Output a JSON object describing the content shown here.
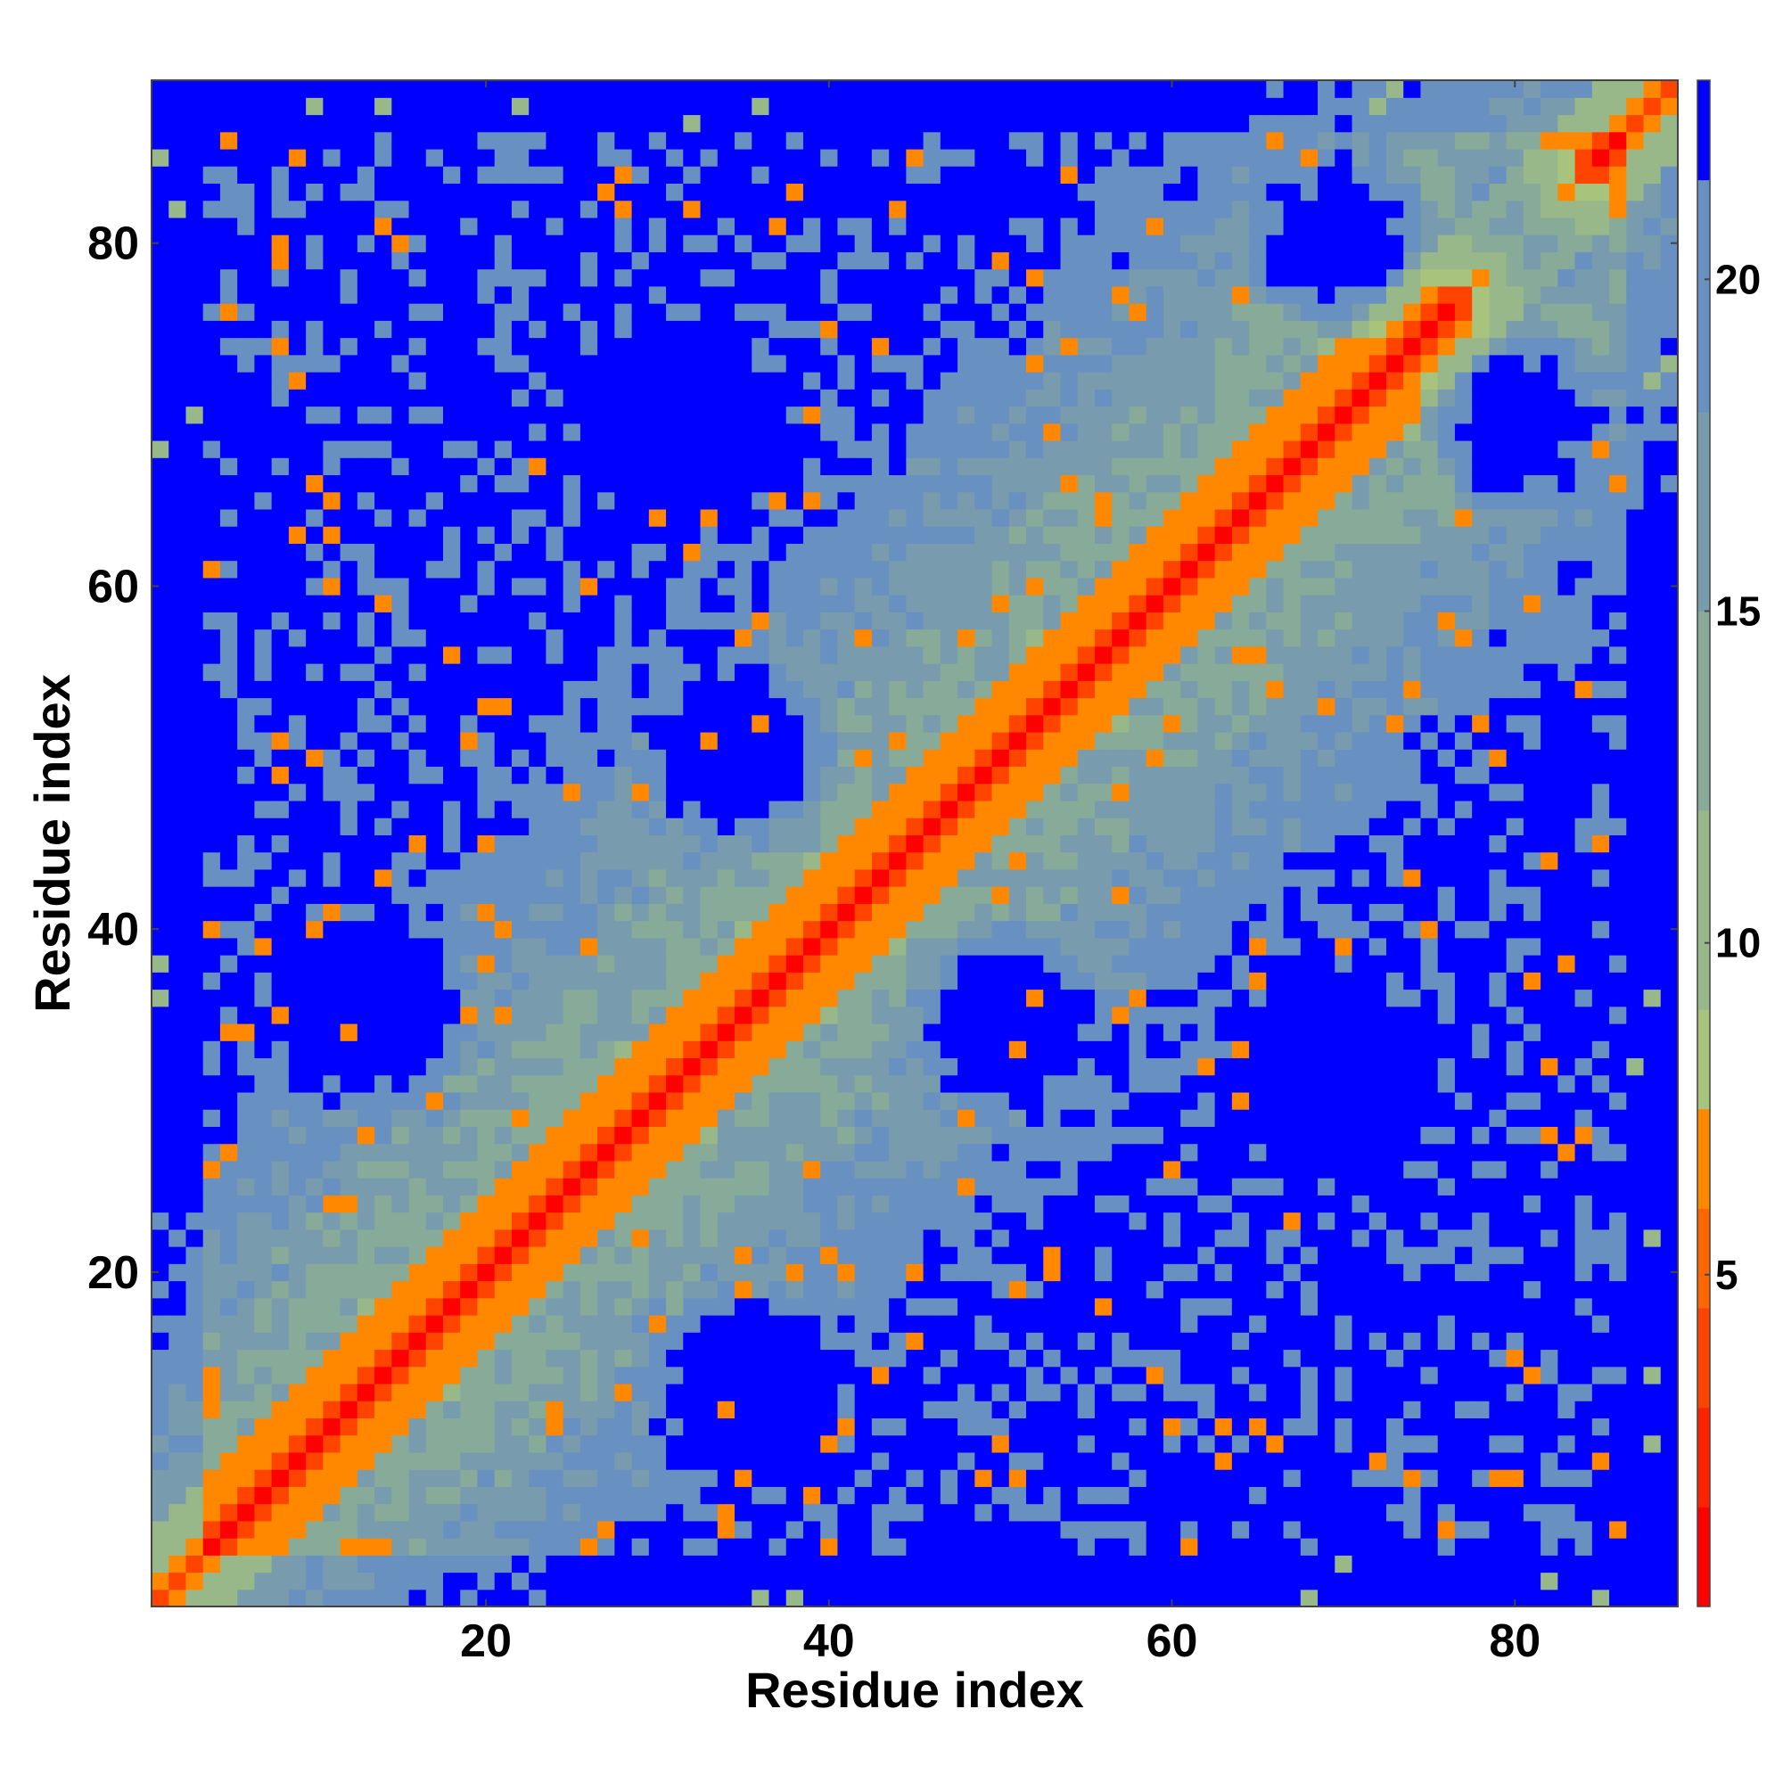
{
  "chart_data": {
    "type": "heatmap",
    "title": "",
    "xlabel": "Residue index",
    "ylabel": "Residue index",
    "n_residues": 89,
    "xlim": [
      1,
      89
    ],
    "ylim": [
      1,
      89
    ],
    "x_ticks": [
      20,
      40,
      60,
      80
    ],
    "y_ticks": [
      20,
      40,
      60,
      80
    ],
    "colorbar": {
      "ticks": [
        5,
        10,
        15,
        20
      ],
      "range": [
        0,
        23
      ],
      "bands": [
        {
          "from": 0,
          "to": 1.5,
          "color": "#ff0000"
        },
        {
          "from": 1.5,
          "to": 3,
          "color": "#ff2200"
        },
        {
          "from": 3,
          "to": 4.5,
          "color": "#ff4400"
        },
        {
          "from": 4.5,
          "to": 6,
          "color": "#ff6600"
        },
        {
          "from": 6,
          "to": 7.5,
          "color": "#ff8800"
        },
        {
          "from": 7.5,
          "to": 9,
          "color": "#a8c47c"
        },
        {
          "from": 9,
          "to": 12,
          "color": "#98b88a"
        },
        {
          "from": 12,
          "to": 15,
          "color": "#88aa98"
        },
        {
          "from": 15,
          "to": 18,
          "color": "#789cae"
        },
        {
          "from": 18,
          "to": 21.5,
          "color": "#6890c0"
        },
        {
          "from": 21.5,
          "to": 23,
          "color": "#0000ff"
        }
      ]
    },
    "matrix_description": "symmetric residue-residue distance map; diagonal ~0, helical i+3/i+4 contacts near 5-7, long-range regions >21"
  }
}
